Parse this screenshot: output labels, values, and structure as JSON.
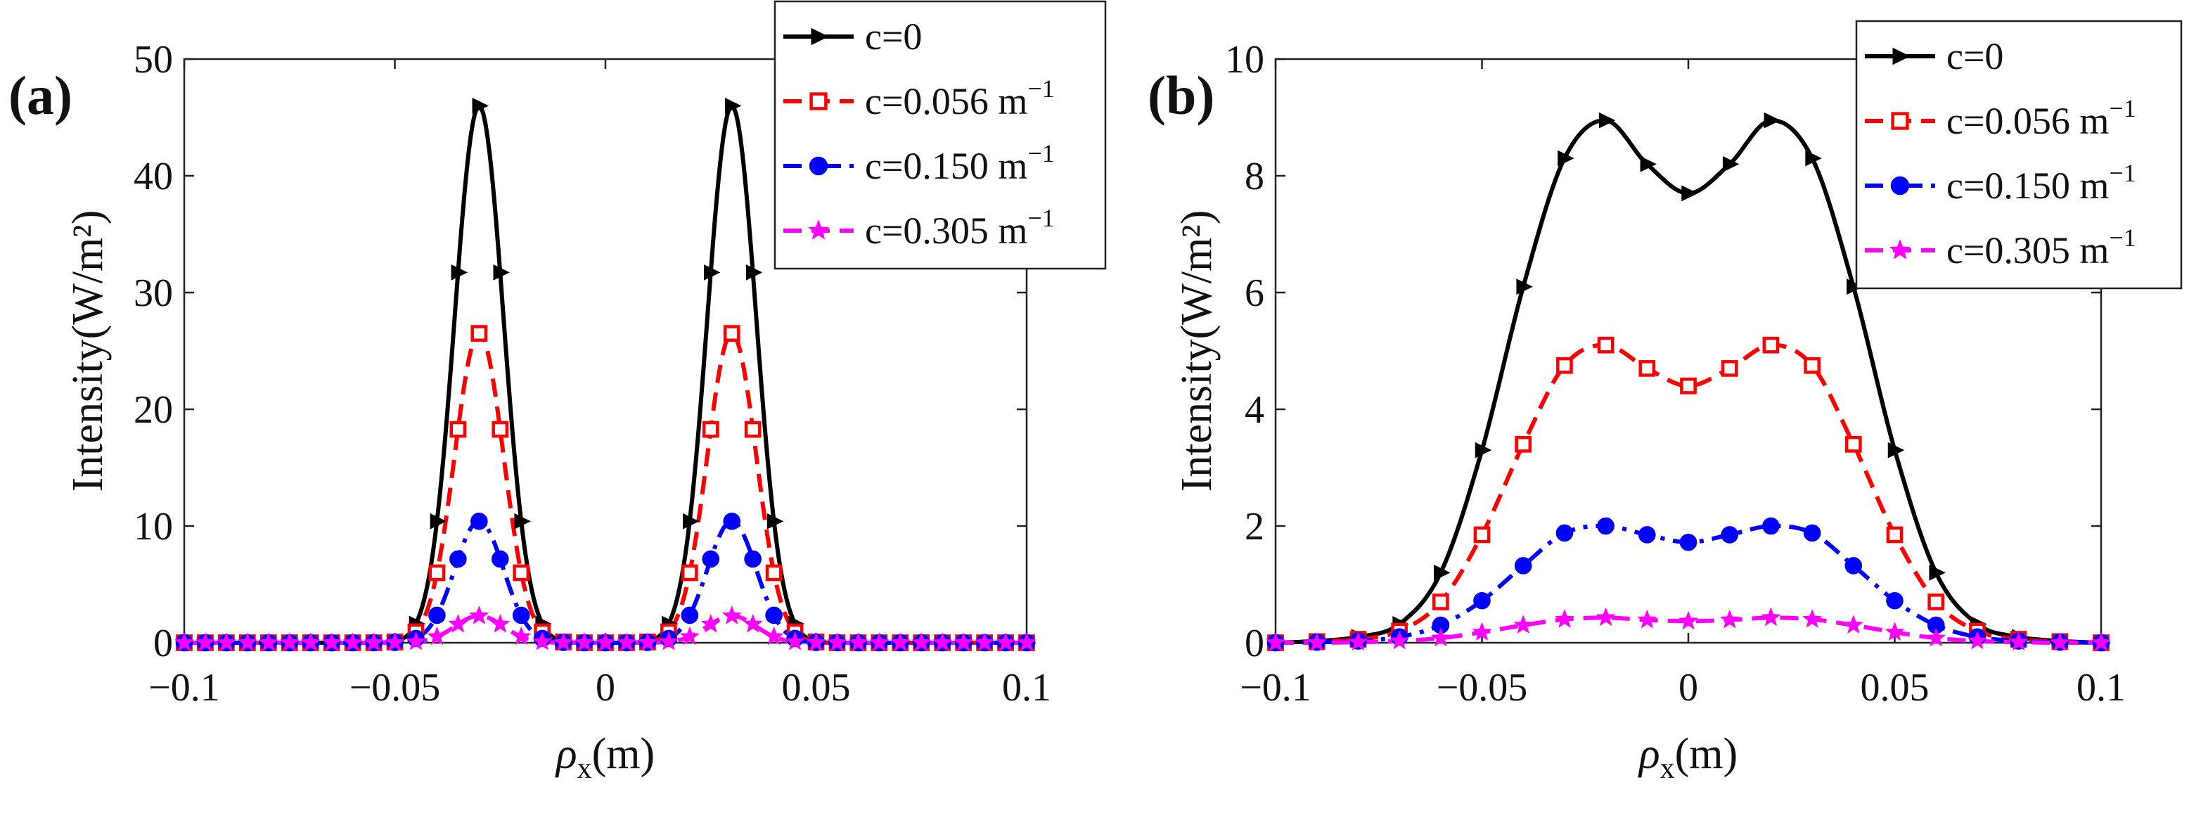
{
  "figure": {
    "panel_labels": [
      "(a)",
      "(b)"
    ]
  },
  "chart_data": [
    {
      "type": "line",
      "panel": "(a)",
      "xlabel": "ρx(m)",
      "ylabel": "Intensity(W/m²)",
      "xlim": [
        -0.1,
        0.1
      ],
      "ylim": [
        0,
        50
      ],
      "xticks": [
        -0.1,
        -0.05,
        0,
        0.05,
        0.1
      ],
      "xtick_labels": [
        "−0.1",
        "−0.05",
        "0",
        "0.05",
        "0.1"
      ],
      "yticks": [
        0,
        10,
        20,
        30,
        40,
        50
      ],
      "ytick_labels": [
        "0",
        "10",
        "20",
        "30",
        "40",
        "50"
      ],
      "legend_position": "top-right",
      "peaks": [
        -0.03,
        0.03
      ],
      "sigma": 0.0058,
      "series": [
        {
          "name": "c=0",
          "label_main": "c=0",
          "label_sup": "",
          "amp": 46,
          "color": "#000000",
          "dash": "",
          "marker": "triangle-right",
          "marker_fill": "#000000"
        },
        {
          "name": "c=0.056 m-1",
          "label_main": "c=0.056 m",
          "label_sup": "−1",
          "amp": 26.5,
          "color": "#ff0000",
          "dash": "dashed",
          "marker": "square",
          "marker_fill": "#ffffff"
        },
        {
          "name": "c=0.150 m-1",
          "label_main": "c=0.150 m",
          "label_sup": "−1",
          "amp": 10.4,
          "color": "#0000ff",
          "dash": "dashdot",
          "marker": "circle",
          "marker_fill": "#0000ff"
        },
        {
          "name": "c=0.305 m-1",
          "label_main": "c=0.305 m",
          "label_sup": "−1",
          "amp": 2.3,
          "color": "#ff00ff",
          "dash": "dashed",
          "marker": "star",
          "marker_fill": "#ff00ff"
        }
      ]
    },
    {
      "type": "line",
      "panel": "(b)",
      "xlabel": "ρx(m)",
      "ylabel": "Intensity(W/m²)",
      "xlim": [
        -0.1,
        0.1
      ],
      "ylim": [
        0,
        10
      ],
      "xticks": [
        -0.1,
        -0.05,
        0,
        0.05,
        0.1
      ],
      "xtick_labels": [
        "−0.1",
        "−0.05",
        "0",
        "0.05",
        "0.1"
      ],
      "yticks": [
        0,
        2,
        4,
        6,
        8,
        10
      ],
      "ytick_labels": [
        "0",
        "2",
        "4",
        "6",
        "8",
        "10"
      ],
      "legend_position": "top-right",
      "x": [
        -0.1,
        -0.09,
        -0.08,
        -0.07,
        -0.06,
        -0.05,
        -0.04,
        -0.03,
        -0.02,
        -0.01,
        0,
        0.01,
        0.02,
        0.03,
        0.04,
        0.05,
        0.06,
        0.07,
        0.08,
        0.09,
        0.1
      ],
      "series": [
        {
          "name": "c=0",
          "label_main": "c=0",
          "label_sup": "",
          "color": "#000000",
          "dash": "",
          "marker": "triangle-right",
          "marker_fill": "#000000",
          "values": [
            0,
            0.03,
            0.1,
            0.32,
            1.2,
            3.3,
            6.1,
            8.3,
            8.95,
            8.2,
            7.7,
            8.2,
            8.95,
            8.3,
            6.1,
            3.3,
            1.2,
            0.32,
            0.1,
            0.03,
            0
          ]
        },
        {
          "name": "c=0.056 m-1",
          "label_main": "c=0.056 m",
          "label_sup": "−1",
          "color": "#ff0000",
          "dash": "dashed",
          "marker": "square",
          "marker_fill": "#ffffff",
          "values": [
            0,
            0.02,
            0.06,
            0.2,
            0.7,
            1.85,
            3.4,
            4.75,
            5.1,
            4.7,
            4.4,
            4.7,
            5.1,
            4.75,
            3.4,
            1.85,
            0.7,
            0.2,
            0.06,
            0.02,
            0
          ]
        },
        {
          "name": "c=0.150 m-1",
          "label_main": "c=0.150 m",
          "label_sup": "−1",
          "color": "#0000ff",
          "dash": "dashdot",
          "marker": "circle",
          "marker_fill": "#0000ff",
          "values": [
            0,
            0.01,
            0.03,
            0.1,
            0.3,
            0.72,
            1.32,
            1.88,
            2.0,
            1.85,
            1.72,
            1.85,
            2.0,
            1.88,
            1.32,
            0.72,
            0.3,
            0.1,
            0.03,
            0.01,
            0
          ]
        },
        {
          "name": "c=0.305 m-1",
          "label_main": "c=0.305 m",
          "label_sup": "−1",
          "color": "#ff00ff",
          "dash": "dashed",
          "marker": "star",
          "marker_fill": "#ff00ff",
          "values": [
            0,
            0.0,
            0.01,
            0.03,
            0.08,
            0.18,
            0.3,
            0.4,
            0.43,
            0.39,
            0.37,
            0.39,
            0.43,
            0.4,
            0.3,
            0.18,
            0.08,
            0.03,
            0.01,
            0.0,
            0
          ]
        }
      ]
    }
  ]
}
